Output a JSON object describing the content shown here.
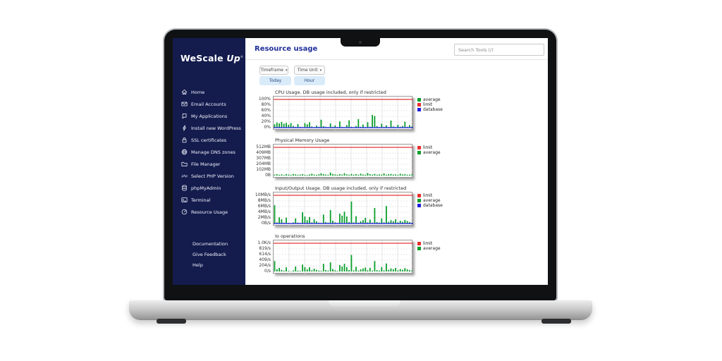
{
  "header": {
    "title": "Resource usage",
    "search_placeholder": "Search Tools (/)"
  },
  "sidebar": {
    "logo_part1": "WeScale",
    "logo_part2": "Up",
    "logo_mark": "®",
    "items": [
      {
        "label": "Home",
        "icon": "home-icon"
      },
      {
        "label": "Email Accounts",
        "icon": "email-icon"
      },
      {
        "label": "My Applications",
        "icon": "applications-icon"
      },
      {
        "label": "Install new WordPress",
        "icon": "lightning-icon"
      },
      {
        "label": "SSL certificates",
        "icon": "lock-icon"
      },
      {
        "label": "Manage DNS zones",
        "icon": "globe-icon"
      },
      {
        "label": "File Manager",
        "icon": "folder-icon"
      },
      {
        "label": "Select PHP Version",
        "icon": "php-icon"
      },
      {
        "label": "phpMyAdmin",
        "icon": "database-icon"
      },
      {
        "label": "Terminal",
        "icon": "terminal-icon"
      },
      {
        "label": "Resource Usage",
        "icon": "gauge-icon"
      }
    ],
    "footer_items": [
      {
        "label": "Documentation"
      },
      {
        "label": "Give Feedback"
      },
      {
        "label": "Help"
      }
    ]
  },
  "controls": {
    "timeframe_label": "Timeframe",
    "time_unit_label": "Time Unit",
    "caret": "▾",
    "timeframe_value": "Today",
    "time_unit_value": "Hour"
  },
  "colors": {
    "sidebar_navy": "#141c4e",
    "title_blue": "#202f9a",
    "button_blue_bg": "#d9ebf9",
    "button_blue_text": "#26497c",
    "limit_red": "#e83030",
    "average_green": "#0b9e2d",
    "database_blue": "#1d1de0",
    "grid_gray": "#cfcfcf"
  },
  "chart_data": [
    {
      "type": "bar",
      "title": "CPU Usage. DB usage included, only if restricted",
      "ylabel": "",
      "xlabel": "",
      "ylim": [
        0,
        100
      ],
      "yticks": [
        "100%",
        "80%",
        "60%",
        "40%",
        "20%",
        "0%"
      ],
      "limit": 100,
      "database_level": 0,
      "grid": true,
      "legend_position": "right",
      "legend": [
        {
          "label": "average",
          "color": "#0b9e2d"
        },
        {
          "label": "limit",
          "color": "#e83030"
        },
        {
          "label": "database",
          "color": "#1d1de0"
        }
      ],
      "series": [
        {
          "name": "average",
          "color": "#0b9e2d",
          "values": [
            12,
            18,
            15,
            20,
            14,
            17,
            10,
            16,
            6,
            3,
            13,
            3,
            2,
            16,
            12,
            19,
            4,
            2,
            7,
            3,
            28,
            5,
            3,
            2,
            15,
            3,
            8,
            2,
            22,
            3,
            2,
            9,
            26,
            3,
            2,
            6,
            30,
            3,
            11,
            2,
            19,
            3,
            45,
            41,
            5,
            2,
            14,
            3,
            8,
            2,
            25,
            4,
            2,
            10,
            3,
            6,
            21,
            3,
            9,
            4
          ]
        }
      ]
    },
    {
      "type": "bar",
      "title": "Physical Memory Usage",
      "ylabel": "",
      "xlabel": "",
      "ylim": [
        0,
        512
      ],
      "yticks": [
        "512MB",
        "409MB",
        "307MB",
        "204MB",
        "102MB",
        "0B"
      ],
      "limit": 512,
      "grid": true,
      "legend_position": "right",
      "legend": [
        {
          "label": "limit",
          "color": "#e83030"
        },
        {
          "label": "average",
          "color": "#0b9e2d"
        }
      ],
      "series": [
        {
          "name": "average",
          "color": "#0b9e2d",
          "values": [
            18,
            25,
            15,
            22,
            12,
            28,
            18,
            14,
            30,
            22,
            15,
            18,
            26,
            14,
            12,
            20,
            35,
            18,
            15,
            23,
            40,
            26,
            18,
            15,
            55,
            30,
            20,
            15,
            25,
            18,
            42,
            22,
            15,
            30,
            18,
            26,
            15,
            35,
            20,
            15,
            45,
            25,
            18,
            30,
            15,
            22,
            18,
            40,
            15,
            26,
            30,
            18,
            22,
            15,
            35,
            20,
            25,
            15,
            18,
            22
          ]
        }
      ]
    },
    {
      "type": "bar",
      "title": "Input/Output Usage. DB usage included, only if restricted",
      "ylabel": "",
      "xlabel": "",
      "ylim": [
        0,
        10
      ],
      "yticks": [
        "10MB/s",
        "8MB/s",
        "6MB/s",
        "4MB/s",
        "2MB/s",
        "0B/s"
      ],
      "limit": 10,
      "database_level": 0,
      "grid": true,
      "legend_position": "right",
      "legend": [
        {
          "label": "limit",
          "color": "#e83030"
        },
        {
          "label": "average",
          "color": "#0b9e2d"
        },
        {
          "label": "database",
          "color": "#1d1de0"
        }
      ],
      "series": [
        {
          "name": "average",
          "color": "#0b9e2d",
          "values": [
            6.5,
            0.4,
            2.2,
            1.5,
            0.3,
            2.1,
            0.2,
            0.1,
            0.4,
            1.8,
            0.3,
            0.2,
            4.0,
            2.5,
            1.2,
            2.3,
            0.4,
            1.5,
            0.8,
            0.3,
            0.2,
            3.2,
            0.5,
            0.3,
            4.8,
            1.0,
            0.4,
            0.2,
            3.5,
            2.8,
            4.2,
            2.5,
            0.5,
            7.8,
            0.4,
            2.6,
            0.3,
            0.8,
            1.2,
            2.0,
            0.4,
            1.4,
            0.3,
            5.5,
            0.5,
            0.3,
            1.8,
            0.4,
            6.2,
            0.6,
            1.2,
            0.8,
            1.5,
            0.4,
            1.0,
            0.6,
            1.3,
            0.9,
            0.5,
            0.3
          ]
        }
      ]
    },
    {
      "type": "bar",
      "title": "Io operations",
      "ylabel": "",
      "xlabel": "",
      "ylim": [
        0,
        1024
      ],
      "yticks": [
        "1.0K/s",
        "819/s",
        "614/s",
        "409/s",
        "204/s",
        "0/s"
      ],
      "limit": 1024,
      "grid": true,
      "legend_position": "right",
      "legend": [
        {
          "label": "limit",
          "color": "#e83030"
        },
        {
          "label": "average",
          "color": "#0b9e2d"
        }
      ],
      "series": [
        {
          "name": "average",
          "color": "#0b9e2d",
          "values": [
            380,
            80,
            130,
            60,
            30,
            150,
            20,
            10,
            40,
            180,
            30,
            20,
            250,
            160,
            80,
            150,
            40,
            100,
            60,
            30,
            20,
            280,
            50,
            30,
            330,
            90,
            40,
            20,
            230,
            180,
            280,
            160,
            50,
            600,
            40,
            170,
            30,
            80,
            110,
            140,
            40,
            130,
            30,
            380,
            50,
            30,
            160,
            40,
            290,
            60,
            110,
            80,
            130,
            40,
            90,
            60,
            120,
            80,
            50,
            30
          ]
        }
      ]
    }
  ]
}
